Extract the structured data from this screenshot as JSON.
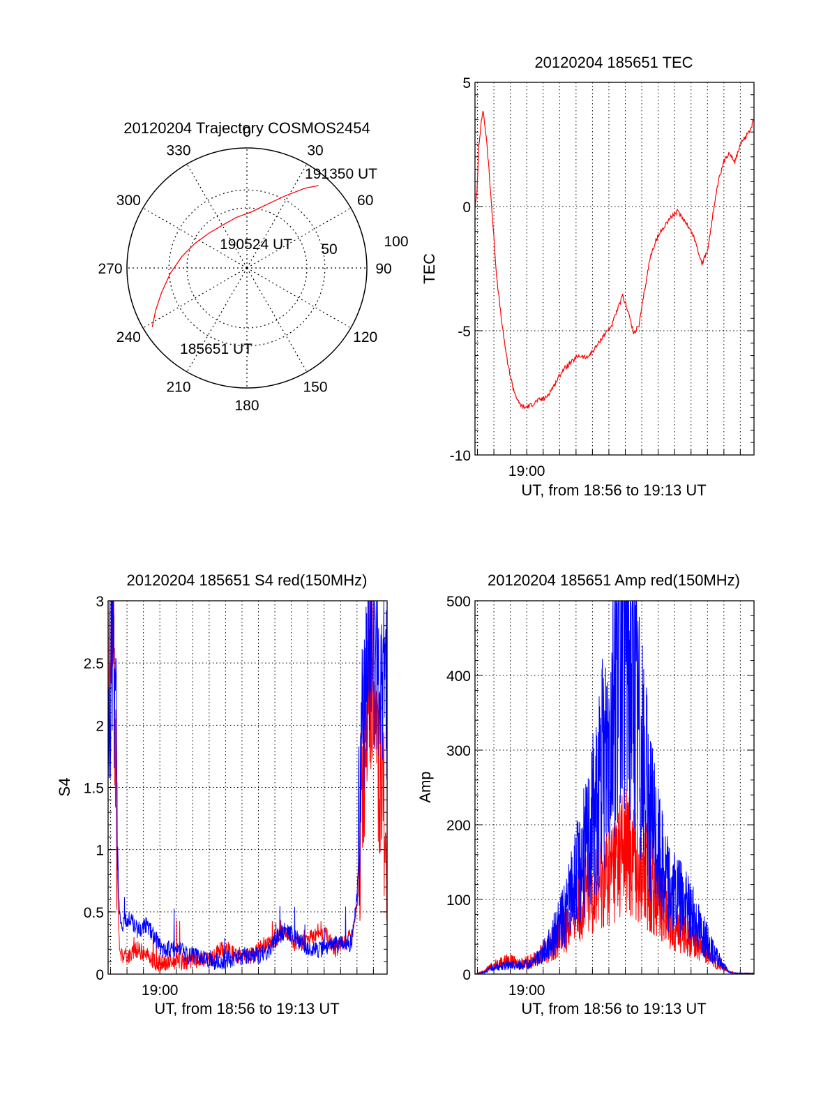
{
  "chart_data": [
    {
      "type": "polar",
      "title": "20120204 Trajectory COSMOS2454",
      "angle_labels": [
        "0",
        "30",
        "60",
        "90",
        "120",
        "150",
        "180",
        "210",
        "240",
        "270",
        "300",
        "330"
      ],
      "radius_labels": [
        "50",
        "100"
      ],
      "rlim": [
        0,
        100
      ],
      "grid": true,
      "series": [
        {
          "color": "#ff0000",
          "points": [
            {
              "az": 238,
              "r": 93
            },
            {
              "az": 245,
              "r": 84
            },
            {
              "az": 254,
              "r": 74
            },
            {
              "az": 266,
              "r": 64
            },
            {
              "az": 280,
              "r": 55
            },
            {
              "az": 295,
              "r": 48
            },
            {
              "az": 312,
              "r": 43
            },
            {
              "az": 330,
              "r": 41
            },
            {
              "az": 348,
              "r": 43
            },
            {
              "az": 5,
              "r": 47
            },
            {
              "az": 18,
              "r": 56
            },
            {
              "az": 28,
              "r": 68
            },
            {
              "az": 36,
              "r": 82
            },
            {
              "az": 41,
              "r": 91
            }
          ]
        }
      ],
      "annotations": [
        {
          "text": "191350 UT",
          "az": 52,
          "r": 100
        },
        {
          "text": "190524 UT",
          "az": 0,
          "r": 0
        },
        {
          "text": "185651 UT",
          "az": 225,
          "r": 90
        }
      ]
    },
    {
      "type": "line",
      "title": "20120204 185651 TEC",
      "xlabel": "UT, from 18:56 to 19:13 UT",
      "ylabel": "TEC",
      "xlim": [
        "18:56:51",
        "19:13:50"
      ],
      "ylim": [
        -10,
        5
      ],
      "xtick_labels": [
        {
          "t": "19:00:00",
          "label": "19:00"
        }
      ],
      "ytick_labels": [
        "-10",
        "-5",
        "0",
        "5"
      ],
      "grid": true,
      "series": [
        {
          "color": "#ff0000",
          "x": [
            "18:56:51",
            "18:56:58",
            "18:57:05",
            "18:57:12",
            "18:57:20",
            "18:57:30",
            "18:57:40",
            "18:57:55",
            "18:58:10",
            "18:58:30",
            "18:58:50",
            "18:59:10",
            "18:59:30",
            "18:59:50",
            "19:00:15",
            "19:00:40",
            "19:01:10",
            "19:01:40",
            "19:02:10",
            "19:02:40",
            "19:03:10",
            "19:03:40",
            "19:04:10",
            "19:04:40",
            "19:05:10",
            "19:05:30",
            "19:05:50",
            "19:06:10",
            "19:06:30",
            "19:06:50",
            "19:07:10",
            "19:07:30",
            "19:07:50",
            "19:08:10",
            "19:08:40",
            "19:09:10",
            "19:09:40",
            "19:10:10",
            "19:10:40",
            "19:11:00",
            "19:11:20",
            "19:11:40",
            "19:12:00",
            "19:12:20",
            "19:12:40",
            "19:13:00",
            "19:13:20",
            "19:13:40",
            "19:13:50"
          ],
          "y": [
            0,
            0.5,
            2.5,
            3.2,
            3.9,
            3.0,
            1.8,
            -0.5,
            -2.8,
            -4.8,
            -6.3,
            -7.3,
            -7.9,
            -8.1,
            -8.0,
            -7.8,
            -7.7,
            -7.2,
            -6.6,
            -6.3,
            -6.0,
            -6.1,
            -5.7,
            -5.2,
            -4.8,
            -4.2,
            -3.6,
            -4.2,
            -5.1,
            -4.8,
            -3.4,
            -2.1,
            -1.4,
            -1.0,
            -0.5,
            -0.2,
            -0.6,
            -1.2,
            -2.3,
            -1.8,
            -0.3,
            1.0,
            1.8,
            2.2,
            1.8,
            2.5,
            2.8,
            3.2,
            3.5
          ]
        }
      ]
    },
    {
      "type": "line",
      "title": "20120204 185651 S4 red(150MHz)",
      "xlabel": "UT, from 18:56 to 19:13 UT",
      "ylabel": "S4",
      "xlim": [
        "18:56:51",
        "19:13:50"
      ],
      "ylim": [
        0,
        3
      ],
      "xtick_labels": [
        {
          "t": "19:00:00",
          "label": "19:00"
        }
      ],
      "ytick_labels": [
        "0",
        "0.5",
        "1",
        "1.5",
        "2",
        "2.5",
        "3"
      ],
      "grid": true,
      "series": [
        {
          "color": "#ff0000",
          "x": [
            "18:56:51",
            "18:57:05",
            "18:57:20",
            "18:57:30",
            "18:57:40",
            "18:58:10",
            "18:58:40",
            "18:59:10",
            "18:59:40",
            "19:00:10",
            "19:00:40",
            "19:01:10",
            "19:01:40",
            "19:02:10",
            "19:02:40",
            "19:03:10",
            "19:03:40",
            "19:04:10",
            "19:04:40",
            "19:05:10",
            "19:05:40",
            "19:06:10",
            "19:06:40",
            "19:07:10",
            "19:07:40",
            "19:08:10",
            "19:08:40",
            "19:09:10",
            "19:09:40",
            "19:10:10",
            "19:10:40",
            "19:11:10",
            "19:11:40",
            "19:12:00",
            "19:12:20",
            "19:12:40",
            "19:13:00",
            "19:13:20",
            "19:13:50"
          ],
          "y": [
            2.2,
            3.0,
            1.5,
            0.3,
            0.15,
            0.15,
            0.2,
            0.15,
            0.1,
            0.08,
            0.1,
            0.1,
            0.1,
            0.12,
            0.1,
            0.12,
            0.2,
            0.2,
            0.15,
            0.15,
            0.15,
            0.22,
            0.25,
            0.3,
            0.35,
            0.25,
            0.25,
            0.3,
            0.35,
            0.3,
            0.2,
            0.25,
            0.3,
            0.5,
            1.5,
            2.5,
            2.2,
            1.5,
            1.2
          ]
        },
        {
          "color": "#0000ff",
          "x": [
            "18:56:51",
            "18:57:05",
            "18:57:20",
            "18:57:30",
            "18:57:40",
            "18:58:10",
            "18:58:40",
            "18:59:10",
            "18:59:40",
            "19:00:10",
            "19:00:40",
            "19:01:10",
            "19:01:40",
            "19:02:10",
            "19:02:40",
            "19:03:10",
            "19:03:40",
            "19:04:10",
            "19:04:40",
            "19:05:10",
            "19:05:40",
            "19:06:10",
            "19:06:40",
            "19:07:10",
            "19:07:40",
            "19:08:10",
            "19:08:40",
            "19:09:10",
            "19:09:40",
            "19:10:10",
            "19:10:40",
            "19:11:10",
            "19:11:40",
            "19:12:00",
            "19:12:20",
            "19:12:40",
            "19:13:00",
            "19:13:20",
            "19:13:50"
          ],
          "y": [
            1.6,
            2.8,
            2.0,
            0.6,
            0.4,
            0.45,
            0.35,
            0.4,
            0.3,
            0.2,
            0.2,
            0.2,
            0.15,
            0.15,
            0.12,
            0.1,
            0.1,
            0.12,
            0.12,
            0.15,
            0.15,
            0.15,
            0.2,
            0.3,
            0.35,
            0.3,
            0.25,
            0.2,
            0.2,
            0.2,
            0.25,
            0.25,
            0.25,
            0.6,
            2.0,
            2.7,
            2.6,
            2.4,
            2.2
          ]
        }
      ]
    },
    {
      "type": "line",
      "title": "20120204 185651 Amp red(150MHz)",
      "xlabel": "UT, from 18:56 to 19:13 UT",
      "ylabel": "Amp",
      "xlim": [
        "18:56:51",
        "19:13:50"
      ],
      "ylim": [
        0,
        500
      ],
      "xtick_labels": [
        {
          "t": "19:00:00",
          "label": "19:00"
        }
      ],
      "ytick_labels": [
        "0",
        "100",
        "200",
        "300",
        "400",
        "500"
      ],
      "grid": true,
      "series": [
        {
          "color": "#ff0000",
          "x": [
            "18:56:51",
            "18:57:20",
            "18:57:50",
            "18:58:20",
            "18:58:50",
            "18:59:20",
            "18:59:50",
            "19:00:20",
            "19:00:50",
            "19:01:20",
            "19:01:50",
            "19:02:20",
            "19:02:50",
            "19:03:20",
            "19:03:50",
            "19:04:20",
            "19:04:50",
            "19:05:20",
            "19:05:50",
            "19:06:20",
            "19:06:50",
            "19:07:20",
            "19:07:50",
            "19:08:20",
            "19:08:50",
            "19:09:20",
            "19:09:50",
            "19:10:20",
            "19:10:50",
            "19:11:20",
            "19:11:50",
            "19:12:20",
            "19:12:50",
            "19:13:20",
            "19:13:50"
          ],
          "y": [
            0,
            3,
            10,
            15,
            18,
            15,
            15,
            18,
            25,
            35,
            45,
            60,
            80,
            100,
            110,
            120,
            130,
            150,
            170,
            160,
            150,
            130,
            110,
            90,
            70,
            60,
            50,
            40,
            30,
            20,
            10,
            3,
            1,
            1,
            1
          ]
        },
        {
          "color": "#0000ff",
          "x": [
            "18:56:51",
            "18:57:20",
            "18:57:50",
            "18:58:20",
            "18:58:50",
            "18:59:20",
            "18:59:50",
            "19:00:20",
            "19:00:50",
            "19:01:20",
            "19:01:50",
            "19:02:20",
            "19:02:50",
            "19:03:20",
            "19:03:50",
            "19:04:20",
            "19:04:50",
            "19:05:20",
            "19:05:50",
            "19:06:20",
            "19:06:50",
            "19:07:20",
            "19:07:50",
            "19:08:20",
            "19:08:50",
            "19:09:20",
            "19:09:50",
            "19:10:20",
            "19:10:50",
            "19:11:20",
            "19:11:50",
            "19:12:20",
            "19:12:50",
            "19:13:20",
            "19:13:50"
          ],
          "y": [
            0,
            2,
            8,
            10,
            12,
            12,
            12,
            15,
            25,
            40,
            60,
            80,
            120,
            150,
            190,
            240,
            300,
            400,
            490,
            420,
            330,
            240,
            180,
            140,
            110,
            100,
            90,
            70,
            50,
            30,
            15,
            2,
            1,
            1,
            1
          ]
        }
      ]
    }
  ]
}
